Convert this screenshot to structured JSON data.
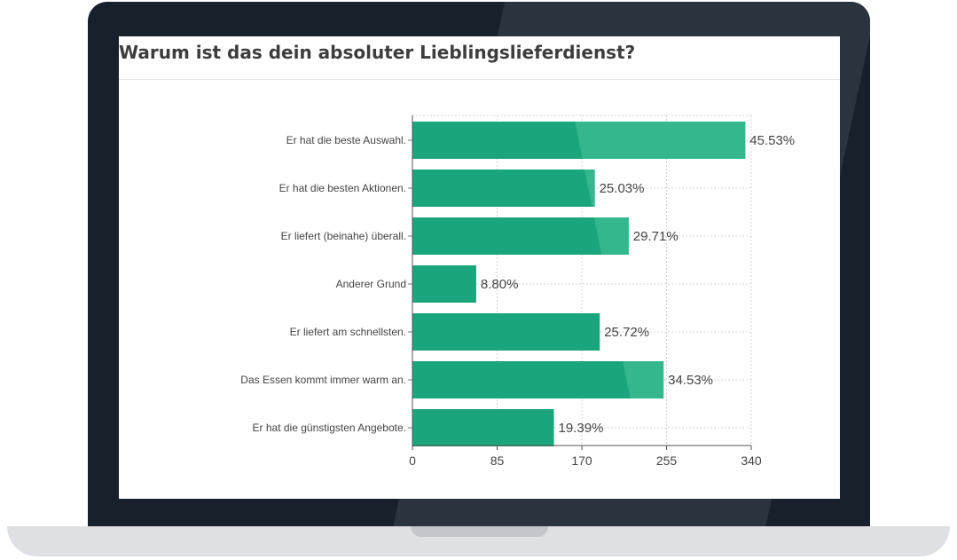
{
  "colors": {
    "bar": "#1aa57c",
    "bar_highlight": "#34b68e",
    "frame": "#17202b",
    "text": "#444444"
  },
  "chart_data": {
    "type": "bar",
    "orientation": "horizontal",
    "title": "Warum ist das dein absoluter Lieblingslieferdienst?",
    "categories": [
      "Er hat die beste Auswahl.",
      "Er hat die besten Aktionen.",
      "Er liefert (beinahe) überall.",
      "Anderer Grund",
      "Er liefert am schnellsten.",
      "Das Essen kommt immer warm an.",
      "Er hat die günstigsten Angebote."
    ],
    "values": [
      334,
      183,
      217,
      64,
      188,
      252,
      142
    ],
    "value_labels": [
      "45.53%",
      "25.03%",
      "29.71%",
      "8.80%",
      "25.72%",
      "34.53%",
      "19.39%"
    ],
    "xlim": [
      0,
      340
    ],
    "xticks": [
      "0",
      "85",
      "170",
      "255",
      "340"
    ],
    "grid": true
  }
}
